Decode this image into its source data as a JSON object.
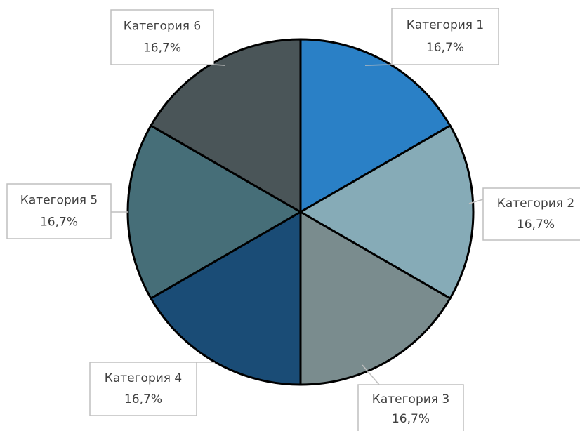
{
  "chart_data": {
    "type": "pie",
    "categories": [
      "Категория 1",
      "Категория 2",
      "Категория 3",
      "Категория 4",
      "Категория 5",
      "Категория 6"
    ],
    "values": [
      16.7,
      16.7,
      16.7,
      16.7,
      16.7,
      16.7
    ],
    "value_labels": [
      "16,7%",
      "16,7%",
      "16,7%",
      "16,7%",
      "16,7%",
      "16,7%"
    ],
    "colors": [
      "#2a80c6",
      "#86abb7",
      "#7a8c8e",
      "#1a4c76",
      "#466e78",
      "#4a5558"
    ]
  }
}
